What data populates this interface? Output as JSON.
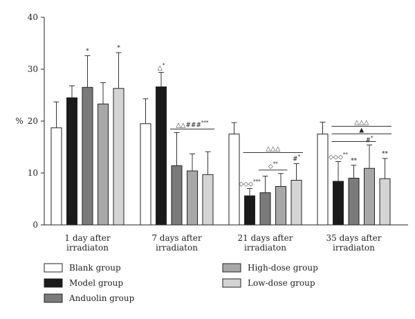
{
  "chart_data": {
    "type": "bar",
    "ylabel": "%",
    "ylim": [
      0,
      40
    ],
    "yticks": [
      0,
      10,
      20,
      30,
      40
    ],
    "grid": false,
    "legend_position": "bottom",
    "categories": [
      [
        "1 day after",
        "irradiaton"
      ],
      [
        "7 days after",
        "irradiaton"
      ],
      [
        "21 days after",
        "irradiaton"
      ],
      [
        "35 days after",
        "irradiaton"
      ]
    ],
    "series": [
      {
        "name": "Blank group",
        "color": "#ffffff",
        "values": [
          18.7,
          19.5,
          17.5,
          17.5
        ],
        "errors": [
          5.0,
          4.8,
          2.2,
          2.3
        ]
      },
      {
        "name": "Model group",
        "color": "#1a1a1a",
        "values": [
          24.5,
          26.6,
          5.6,
          8.4
        ],
        "errors": [
          2.3,
          2.8,
          1.4,
          3.8
        ]
      },
      {
        "name": "Anduolin group",
        "color": "#7a7a7a",
        "values": [
          26.5,
          11.4,
          6.2,
          9.0
        ],
        "errors": [
          6.1,
          6.4,
          3.2,
          2.5
        ]
      },
      {
        "name": "High-dose group",
        "color": "#a8a8a8",
        "values": [
          23.3,
          10.4,
          7.4,
          10.9
        ],
        "errors": [
          4.1,
          3.3,
          2.5,
          4.5
        ]
      },
      {
        "name": "Low-dose group",
        "color": "#d4d4d4",
        "values": [
          26.3,
          9.7,
          8.6,
          8.9
        ],
        "errors": [
          6.9,
          4.4,
          3.2,
          3.9
        ]
      }
    ],
    "annotations": [
      {
        "group": 0,
        "series": 2,
        "text": "*",
        "sup": ""
      },
      {
        "group": 0,
        "series": 4,
        "text": "*",
        "sup": ""
      },
      {
        "group": 1,
        "series": 1,
        "text": "△",
        "sup": "*"
      },
      {
        "group": 2,
        "series": 1,
        "text": "◇◇◇",
        "sup": "***"
      },
      {
        "group": 2,
        "series": 4,
        "text": "#",
        "sup": "*"
      },
      {
        "group": 3,
        "series": 1,
        "text": "◇◇◇",
        "sup": "**"
      },
      {
        "group": 3,
        "series": 2,
        "text": "**",
        "sup": ""
      },
      {
        "group": 3,
        "series": 3,
        "text": "#",
        "sup": "*"
      },
      {
        "group": 3,
        "series": 4,
        "text": "**",
        "sup": ""
      }
    ],
    "brackets": [
      {
        "group": 1,
        "from": 2,
        "to": 4,
        "text": "△△###",
        "sup": "***",
        "level": 0
      },
      {
        "group": 2,
        "from": 2,
        "to": 3,
        "text": "◇",
        "sup": "**",
        "level": 0
      },
      {
        "group": 2,
        "from": 1,
        "to": 4,
        "text": "△△△",
        "sup": "",
        "level": 1
      },
      {
        "group": 3,
        "from": 1,
        "to": 3,
        "text": "",
        "sup": "",
        "level": 0
      },
      {
        "group": 3,
        "from": 1,
        "to": 4,
        "text": "▲",
        "sup": "",
        "level": 1
      },
      {
        "group": 3,
        "from": 1,
        "to": 4,
        "text": "△△△",
        "sup": "",
        "level": 2
      }
    ]
  }
}
